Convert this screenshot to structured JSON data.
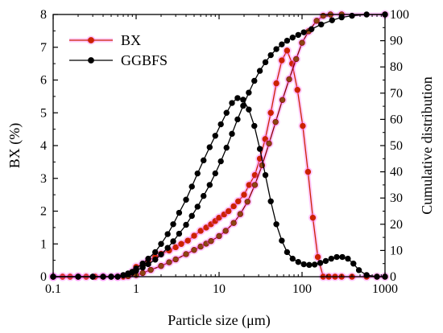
{
  "chart_data": {
    "type": "line",
    "title": "",
    "xlabel": "Particle size (μm)",
    "ylabel_left": "BX (%)",
    "ylabel_right": "Cumulative distribution",
    "x_scale": "log",
    "xlim": [
      0.1,
      1000
    ],
    "ylim_left": [
      0,
      8
    ],
    "ylim_right": [
      0,
      100
    ],
    "x_ticks": [
      0.1,
      1,
      10,
      100,
      1000
    ],
    "x_tick_labels": [
      "0.1",
      "1",
      "10",
      "100",
      "1000"
    ],
    "y_left_ticks": [
      0,
      1,
      2,
      3,
      4,
      5,
      6,
      7,
      8
    ],
    "y_left_tick_labels": [
      "0",
      "1",
      "2",
      "3",
      "4",
      "5",
      "6",
      "7",
      "8"
    ],
    "y_right_ticks": [
      0,
      10,
      20,
      30,
      40,
      50,
      60,
      70,
      80,
      90,
      100
    ],
    "y_right_tick_labels": [
      "0",
      "10",
      "20",
      "30",
      "40",
      "50",
      "60",
      "70",
      "80",
      "90",
      "100"
    ],
    "grid": false,
    "legend_position": "top-left",
    "series": [
      {
        "name": "BX",
        "axis": "left",
        "color": "#cc2200",
        "marker_fill": "#cc2200",
        "halo": "#ff66ff",
        "x": [
          0.1,
          0.13,
          0.16,
          0.2,
          0.25,
          0.32,
          0.4,
          0.5,
          0.6,
          0.7,
          0.8,
          0.9,
          1.0,
          1.2,
          1.4,
          1.7,
          2.0,
          2.5,
          3.0,
          3.5,
          4.2,
          5.0,
          6.0,
          7.0,
          8.0,
          9.0,
          10.0,
          11.5,
          13.0,
          15.0,
          17.0,
          20.0,
          23.0,
          27.0,
          31.0,
          36.0,
          42.0,
          49.0,
          57.0,
          66.0,
          76.0,
          88.0,
          102.0,
          118.0,
          135.0,
          155.0,
          180.0,
          210.0,
          250.0,
          300.0,
          400.0,
          600.0,
          800.0,
          1000.0
        ],
        "values": [
          0,
          0,
          0,
          0,
          0,
          0,
          0,
          0,
          0,
          0,
          0.05,
          0.15,
          0.3,
          0.4,
          0.5,
          0.6,
          0.7,
          0.8,
          0.9,
          1.0,
          1.1,
          1.25,
          1.4,
          1.5,
          1.6,
          1.7,
          1.8,
          1.9,
          2.0,
          2.15,
          2.3,
          2.5,
          2.8,
          3.1,
          3.6,
          4.2,
          5.0,
          5.9,
          6.6,
          6.9,
          6.5,
          5.7,
          4.6,
          3.2,
          1.8,
          0.6,
          0,
          0,
          0,
          0,
          0,
          0,
          0,
          0
        ]
      },
      {
        "name": "",
        "axis": "right",
        "color": "#8b0000",
        "marker_fill": "#8b4513",
        "halo": "#ff66ff",
        "x": [
          0.1,
          0.2,
          0.4,
          0.6,
          0.8,
          1.0,
          1.2,
          1.5,
          2.0,
          2.5,
          3.0,
          4.0,
          5.0,
          6.0,
          7.0,
          8.0,
          10.0,
          12.0,
          15.0,
          18.0,
          22.0,
          27.0,
          33.0,
          40.0,
          48.0,
          58.0,
          70.0,
          85.0,
          100.0,
          120.0,
          150.0,
          180.0,
          220.0,
          300.0,
          1000.0
        ],
        "values": [
          0,
          0,
          0,
          0,
          0.2,
          0.6,
          1.4,
          2.6,
          4.1,
          5.5,
          6.6,
          8.6,
          10.2,
          11.5,
          12.6,
          13.6,
          15.5,
          17.5,
          20.5,
          23.9,
          28.6,
          35.0,
          42.5,
          50.8,
          59.0,
          67.4,
          75.3,
          83.0,
          89.2,
          93.6,
          97.6,
          99.5,
          100,
          100,
          100
        ]
      },
      {
        "name": "GGBFS",
        "axis": "left",
        "color": "#000000",
        "marker_fill": "#000000",
        "halo": "",
        "x": [
          0.1,
          0.2,
          0.3,
          0.4,
          0.5,
          0.6,
          0.7,
          0.8,
          0.9,
          1.0,
          1.2,
          1.4,
          1.7,
          2.0,
          2.4,
          2.8,
          3.3,
          4.0,
          4.7,
          5.5,
          6.5,
          7.7,
          9.0,
          10.5,
          12.3,
          14.3,
          16.7,
          19.5,
          22.8,
          26.6,
          31.0,
          36.2,
          42.0,
          49.0,
          57.0,
          66.0,
          77.0,
          90.0,
          105.0,
          122.0,
          142.0,
          166.0,
          193.0,
          225.0,
          262.0,
          306.0,
          357.0,
          416.0,
          485.0,
          600.0,
          800.0,
          1000.0
        ],
        "values": [
          0,
          0,
          0,
          0,
          0,
          0,
          0.05,
          0.1,
          0.15,
          0.25,
          0.4,
          0.55,
          0.75,
          1.0,
          1.3,
          1.6,
          1.95,
          2.35,
          2.75,
          3.15,
          3.55,
          3.95,
          4.3,
          4.65,
          5.0,
          5.3,
          5.45,
          5.4,
          5.1,
          4.6,
          3.9,
          3.1,
          2.3,
          1.6,
          1.1,
          0.75,
          0.55,
          0.45,
          0.38,
          0.36,
          0.37,
          0.42,
          0.48,
          0.55,
          0.6,
          0.6,
          0.55,
          0.4,
          0.2,
          0.05,
          0,
          0
        ]
      },
      {
        "name": "",
        "axis": "right",
        "color": "#000000",
        "marker_fill": "#000000",
        "halo": "",
        "x": [
          0.1,
          0.3,
          0.5,
          0.7,
          0.8,
          0.9,
          1.0,
          1.2,
          1.4,
          1.7,
          2.0,
          2.4,
          2.8,
          3.3,
          4.0,
          4.7,
          5.5,
          6.5,
          7.7,
          9.0,
          10.5,
          12.3,
          14.3,
          16.7,
          19.5,
          22.8,
          26.6,
          31.0,
          36.2,
          42.0,
          49.0,
          57.0,
          66.0,
          77.0,
          90.0,
          105.0,
          130.0,
          170.0,
          230.0,
          300.0,
          400.0,
          600.0,
          1000.0
        ],
        "values": [
          0,
          0,
          0,
          0.5,
          1.0,
          1.6,
          2.3,
          3.5,
          4.8,
          6.5,
          8.5,
          11.0,
          13.5,
          16.4,
          19.8,
          23.2,
          26.7,
          30.8,
          35.0,
          39.4,
          44.0,
          49.2,
          54.5,
          60.0,
          65.2,
          70.2,
          74.7,
          78.5,
          81.8,
          84.5,
          86.8,
          88.6,
          90.0,
          91.2,
          92.2,
          93.2,
          94.4,
          96.2,
          97.8,
          98.9,
          99.5,
          100,
          100
        ]
      }
    ]
  }
}
